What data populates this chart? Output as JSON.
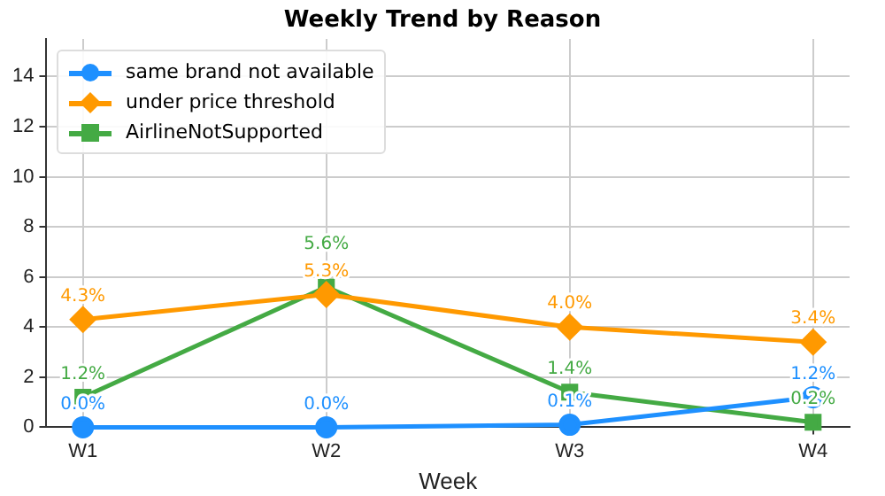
{
  "chart_data": {
    "type": "line",
    "title": "Weekly Trend by Reason",
    "xlabel": "Week",
    "categories": [
      "W1",
      "W2",
      "W3",
      "W4"
    ],
    "series": [
      {
        "name": "same brand not available",
        "color": "#1e90ff",
        "marker": "circle",
        "values": [
          0.0,
          0.0,
          0.1,
          1.2
        ],
        "value_labels": [
          "0.0%",
          "0.0%",
          "0.1%",
          "1.2%"
        ]
      },
      {
        "name": "under price threshold",
        "color": "#ff9900",
        "marker": "diamond",
        "values": [
          4.3,
          5.3,
          4.0,
          3.4
        ],
        "value_labels": [
          "4.3%",
          "5.3%",
          "4.0%",
          "3.4%"
        ]
      },
      {
        "name": "AirlineNotSupported",
        "color": "#44aa44",
        "marker": "square",
        "values": [
          1.2,
          5.6,
          1.4,
          0.2
        ],
        "value_labels": [
          "1.2%",
          "5.6%",
          "1.4%",
          "0.2%"
        ]
      }
    ],
    "ylim": [
      0,
      15.5
    ],
    "yticks": [
      0,
      2,
      4,
      6,
      8,
      10,
      12,
      14
    ],
    "grid": true,
    "legend": "top left",
    "line_style": "solid"
  }
}
